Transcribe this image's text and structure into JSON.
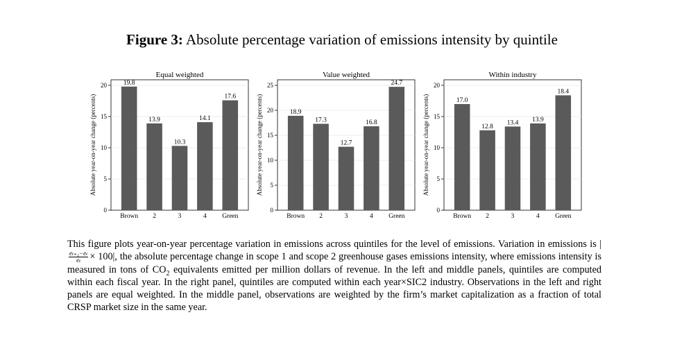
{
  "figure": {
    "label": "Figure 3:",
    "title": "Absolute percentage variation of emissions intensity by quintile"
  },
  "chart_data": [
    {
      "type": "bar",
      "title": "Equal weighted",
      "categories": [
        "Brown",
        "2",
        "3",
        "4",
        "Green"
      ],
      "values": [
        19.8,
        13.9,
        10.3,
        14.1,
        17.6
      ],
      "value_labels": [
        "19.8",
        "13.9",
        "10.3",
        "14.1",
        "17.6"
      ],
      "ylabel": "Absolute year-on-year change (percents)",
      "xlabel": "",
      "ylim": [
        0,
        20
      ],
      "yticks": [
        0,
        5,
        10,
        15,
        20
      ],
      "ytick_labels": [
        "0",
        "5",
        "10",
        "15",
        "20"
      ],
      "grid": true
    },
    {
      "type": "bar",
      "title": "Value weighted",
      "categories": [
        "Brown",
        "2",
        "3",
        "4",
        "Green"
      ],
      "values": [
        18.9,
        17.3,
        12.7,
        16.8,
        24.7
      ],
      "value_labels": [
        "18.9",
        "17.3",
        "12.7",
        "16.8",
        "24.7"
      ],
      "ylabel": "Absolute year-on-year change (percents)",
      "xlabel": "",
      "ylim": [
        0,
        25
      ],
      "yticks": [
        0,
        5,
        10,
        15,
        20,
        25
      ],
      "ytick_labels": [
        "0",
        "5",
        "10",
        "15",
        "20",
        "25"
      ],
      "grid": true
    },
    {
      "type": "bar",
      "title": "Within industry",
      "categories": [
        "Brown",
        "2",
        "3",
        "4",
        "Green"
      ],
      "values": [
        17.0,
        12.8,
        13.4,
        13.9,
        18.4
      ],
      "value_labels": [
        "17.0",
        "12.8",
        "13.4",
        "13.9",
        "18.4"
      ],
      "ylabel": "Absolute year-on-year change (percents)",
      "xlabel": "",
      "ylim": [
        0,
        20
      ],
      "yticks": [
        0,
        5,
        10,
        15,
        20
      ],
      "ytick_labels": [
        "0",
        "5",
        "10",
        "15",
        "20"
      ],
      "grid": true
    }
  ],
  "colors": {
    "bar": "#5a5a5a",
    "grid": "#e6e6e6",
    "axis": "#000000"
  },
  "caption": {
    "part1": "This figure plots year-on-year percentage variation in emissions across quintiles for the level of emissions. Variation in emissions is",
    "formula_open": "|",
    "formula_num": "eₜ₊₁−eₜ",
    "formula_den": "eₜ",
    "formula_tail": "× 100|",
    "part2": ", the absolute percentage change in scope 1 and scope 2 greenhouse gases emissions intensity, where emissions intensity is measured in tons of CO",
    "sub2": "2",
    "part3": " equivalents emitted per million dollars of revenue. In the left and middle panels, quintiles are computed within each fiscal year. In the right panel, quintiles are computed within each year×SIC2 industry. Observations in the left and right panels are equal weighted. In the middle panel, observations are weighted by the firm’s market capitalization as a fraction of total CRSP market size in the same year."
  }
}
